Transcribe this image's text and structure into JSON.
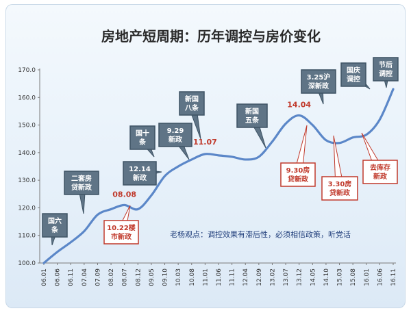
{
  "chart_data": {
    "type": "line",
    "title": "房地产短周期：历年调控与房价变化",
    "ylim": [
      100,
      170
    ],
    "yticks": [
      "100.0",
      "110.0",
      "120.0",
      "130.0",
      "140.0",
      "150.0",
      "160.0",
      "170.0"
    ],
    "xticks": [
      "06.01",
      "06.06",
      "06.11",
      "07.04",
      "07.09",
      "08.02",
      "08.07",
      "08.12",
      "09.05",
      "09.10",
      "10.03",
      "10.08",
      "11.01",
      "11.06",
      "11.11",
      "12.04",
      "12.09",
      "13.02",
      "13.07",
      "13.12",
      "14.05",
      "14.10",
      "15.03",
      "15.08",
      "16.01",
      "16.06",
      "16.11"
    ],
    "series": [
      {
        "color": "#5b87c8",
        "x": [
          "06.01",
          "06.06",
          "06.11",
          "07.04",
          "07.09",
          "08.02",
          "08.07",
          "08.12",
          "09.05",
          "09.10",
          "10.03",
          "10.08",
          "11.01",
          "11.06",
          "11.11",
          "12.04",
          "12.09",
          "13.02",
          "13.07",
          "13.12",
          "14.05",
          "14.10",
          "15.03",
          "15.08",
          "16.01",
          "16.06",
          "16.11"
        ],
        "values": [
          100.0,
          104.0,
          107.5,
          111.5,
          117.5,
          119.5,
          121.0,
          119.5,
          124.5,
          131.5,
          135.0,
          137.5,
          139.5,
          139.0,
          138.5,
          137.5,
          138.5,
          144.0,
          150.5,
          153.5,
          150.0,
          144.5,
          143.5,
          145.5,
          146.5,
          152.0,
          163.0
        ]
      }
    ],
    "peak_labels": [
      {
        "x": "08.07",
        "label": "08.08"
      },
      {
        "x": "11.01",
        "label": "11.07"
      },
      {
        "x": "13.12",
        "label": "14.04"
      }
    ],
    "callouts": [
      {
        "lines": [
          "国六",
          "条"
        ],
        "style": "grey"
      },
      {
        "lines": [
          "二套房",
          "贷新政"
        ],
        "style": "grey"
      },
      {
        "lines": [
          "10.22楼",
          "市新政"
        ],
        "style": "red"
      },
      {
        "lines": [
          "12.14",
          "新政"
        ],
        "style": "grey"
      },
      {
        "lines": [
          "国十",
          "条"
        ],
        "style": "grey"
      },
      {
        "lines": [
          "9.29",
          "新政"
        ],
        "style": "grey"
      },
      {
        "lines": [
          "新国",
          "八条"
        ],
        "style": "grey"
      },
      {
        "lines": [
          "新国",
          "五条"
        ],
        "style": "grey"
      },
      {
        "lines": [
          "9.30房",
          "贷新政"
        ],
        "style": "red"
      },
      {
        "lines": [
          "3.25沪",
          "深新政"
        ],
        "style": "grey"
      },
      {
        "lines": [
          "3.30房",
          "贷新政"
        ],
        "style": "red"
      },
      {
        "lines": [
          "国庆",
          "调控"
        ],
        "style": "grey"
      },
      {
        "lines": [
          "去库存",
          "新政"
        ],
        "style": "red"
      },
      {
        "lines": [
          "节后",
          "调控"
        ],
        "style": "grey"
      }
    ],
    "note": "老杨观点：调控效果有滞后性，必须相信政策，听党话",
    "grid": false
  }
}
